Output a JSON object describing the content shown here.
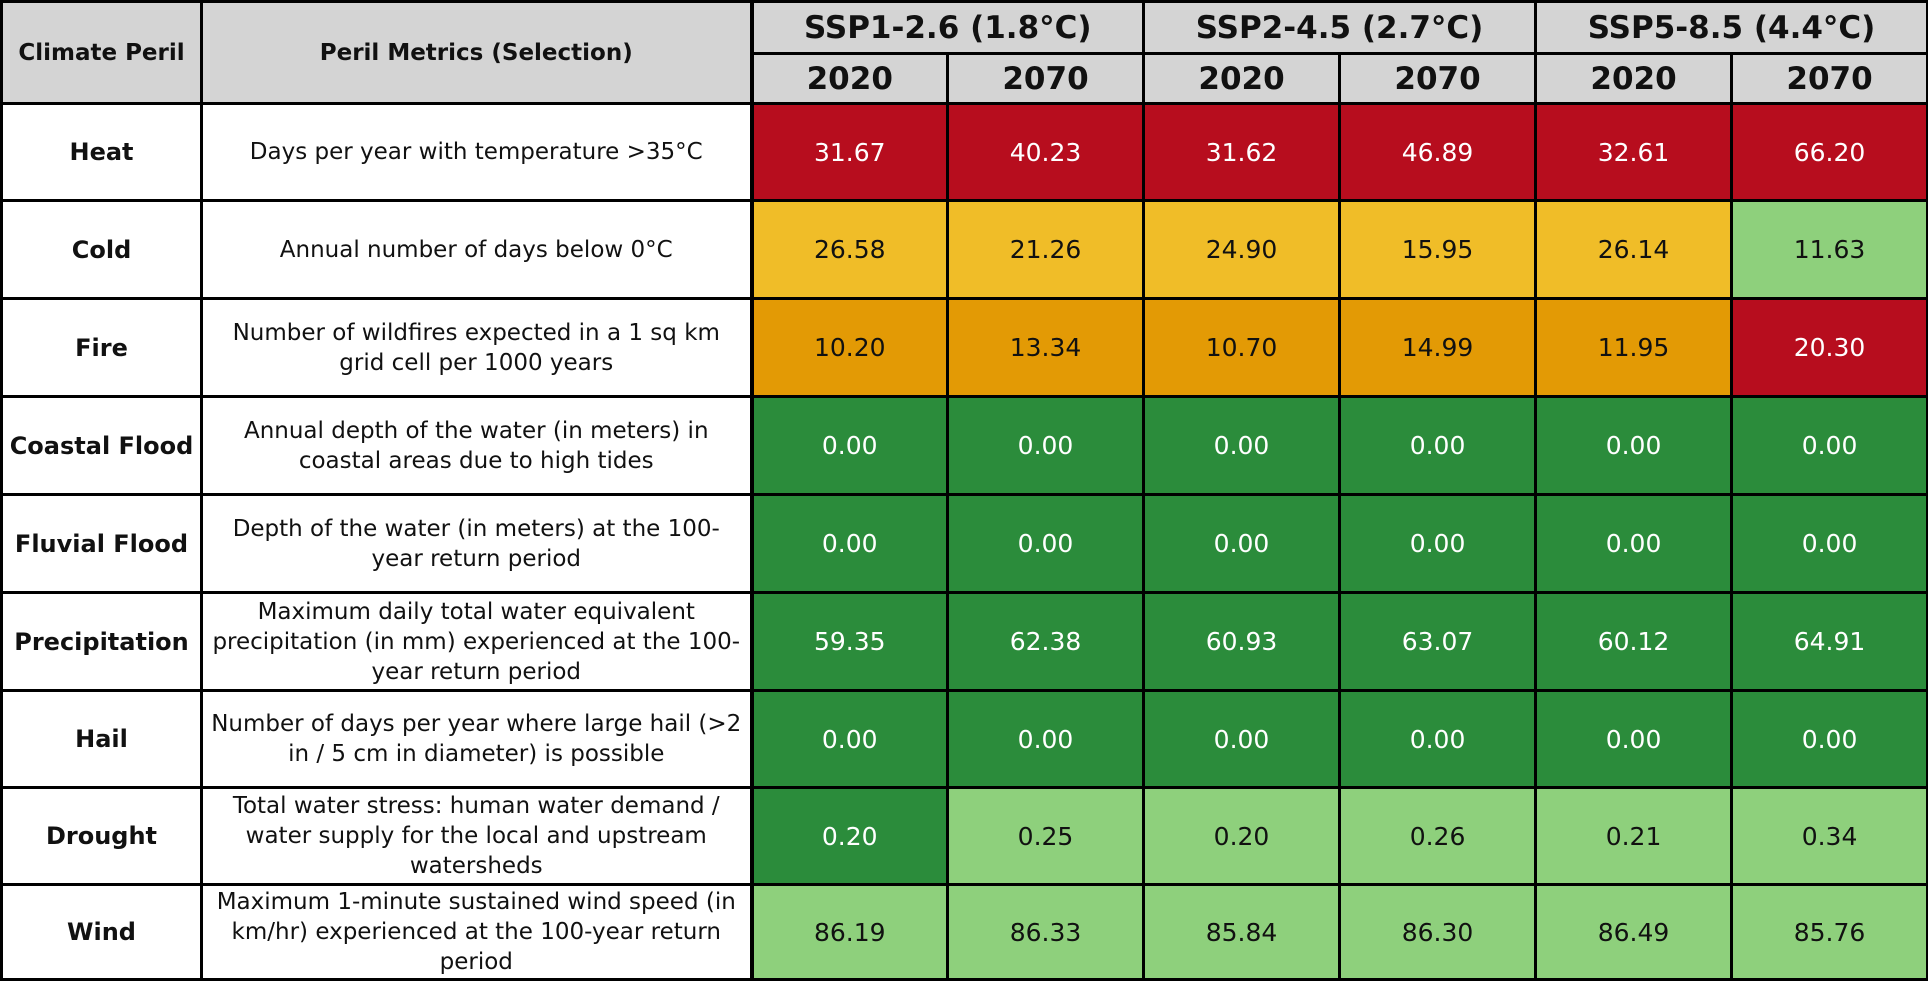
{
  "chart_data": {
    "type": "table",
    "columns": {
      "peril_header": "Climate Peril",
      "metric_header": "Peril Metrics (Selection)",
      "scenarios": [
        {
          "name": "SSP1-2.6 (1.8°C)",
          "years": [
            "2020",
            "2070"
          ]
        },
        {
          "name": "SSP2-4.5 (2.7°C)",
          "years": [
            "2020",
            "2070"
          ]
        },
        {
          "name": "SSP5-8.5 (4.4°C)",
          "years": [
            "2020",
            "2070"
          ]
        }
      ]
    },
    "rows": [
      {
        "peril": "Heat",
        "metric": "Days per year with temperature >35°C",
        "values": [
          "31.67",
          "40.23",
          "31.62",
          "46.89",
          "32.61",
          "66.20"
        ],
        "colors": [
          "#b70d1e",
          "#b70d1e",
          "#b70d1e",
          "#b70d1e",
          "#b70d1e",
          "#b70d1e"
        ]
      },
      {
        "peril": "Cold",
        "metric": "Annual number of days below 0°C",
        "values": [
          "26.58",
          "21.26",
          "24.90",
          "15.95",
          "26.14",
          "11.63"
        ],
        "colors": [
          "#f0bd28",
          "#f0bd28",
          "#f0bd28",
          "#f0bd28",
          "#f0bd28",
          "#8ed07c"
        ]
      },
      {
        "peril": "Fire",
        "metric": "Number of wildfires expected in a 1 sq km grid cell per 1000 years",
        "values": [
          "10.20",
          "13.34",
          "10.70",
          "14.99",
          "11.95",
          "20.30"
        ],
        "colors": [
          "#e39a05",
          "#e39a05",
          "#e39a05",
          "#e39a05",
          "#e39a05",
          "#b70d1e"
        ]
      },
      {
        "peril": "Coastal Flood",
        "metric": "Annual depth of the water (in meters) in coastal areas due to high tides",
        "values": [
          "0.00",
          "0.00",
          "0.00",
          "0.00",
          "0.00",
          "0.00"
        ],
        "colors": [
          "#2b8c3b",
          "#2b8c3b",
          "#2b8c3b",
          "#2b8c3b",
          "#2b8c3b",
          "#2b8c3b"
        ]
      },
      {
        "peril": "Fluvial Flood",
        "metric": "Depth of the water (in meters) at the 100-year return period",
        "values": [
          "0.00",
          "0.00",
          "0.00",
          "0.00",
          "0.00",
          "0.00"
        ],
        "colors": [
          "#2b8c3b",
          "#2b8c3b",
          "#2b8c3b",
          "#2b8c3b",
          "#2b8c3b",
          "#2b8c3b"
        ]
      },
      {
        "peril": "Precipitation",
        "metric": "Maximum daily total water equivalent precipitation (in mm) experienced at the 100-year return period",
        "values": [
          "59.35",
          "62.38",
          "60.93",
          "63.07",
          "60.12",
          "64.91"
        ],
        "colors": [
          "#2b8c3b",
          "#2b8c3b",
          "#2b8c3b",
          "#2b8c3b",
          "#2b8c3b",
          "#2b8c3b"
        ]
      },
      {
        "peril": "Hail",
        "metric": "Number of days per year where large hail (>2 in / 5 cm in diameter) is possible",
        "values": [
          "0.00",
          "0.00",
          "0.00",
          "0.00",
          "0.00",
          "0.00"
        ],
        "colors": [
          "#2b8c3b",
          "#2b8c3b",
          "#2b8c3b",
          "#2b8c3b",
          "#2b8c3b",
          "#2b8c3b"
        ]
      },
      {
        "peril": "Drought",
        "metric": "Total water stress: human water demand / water supply for the local and upstream watersheds",
        "values": [
          "0.20",
          "0.25",
          "0.20",
          "0.26",
          "0.21",
          "0.34"
        ],
        "colors": [
          "#2b8c3b",
          "#8ed07c",
          "#8ed07c",
          "#8ed07c",
          "#8ed07c",
          "#8ed07c"
        ]
      },
      {
        "peril": "Wind",
        "metric": "Maximum 1-minute sustained wind speed (in km/hr) experienced at the 100-year return period",
        "values": [
          "86.19",
          "86.33",
          "85.84",
          "86.30",
          "86.49",
          "85.76"
        ],
        "colors": [
          "#8ed07c",
          "#8ed07c",
          "#8ed07c",
          "#8ed07c",
          "#8ed07c",
          "#8ed07c"
        ]
      }
    ]
  }
}
